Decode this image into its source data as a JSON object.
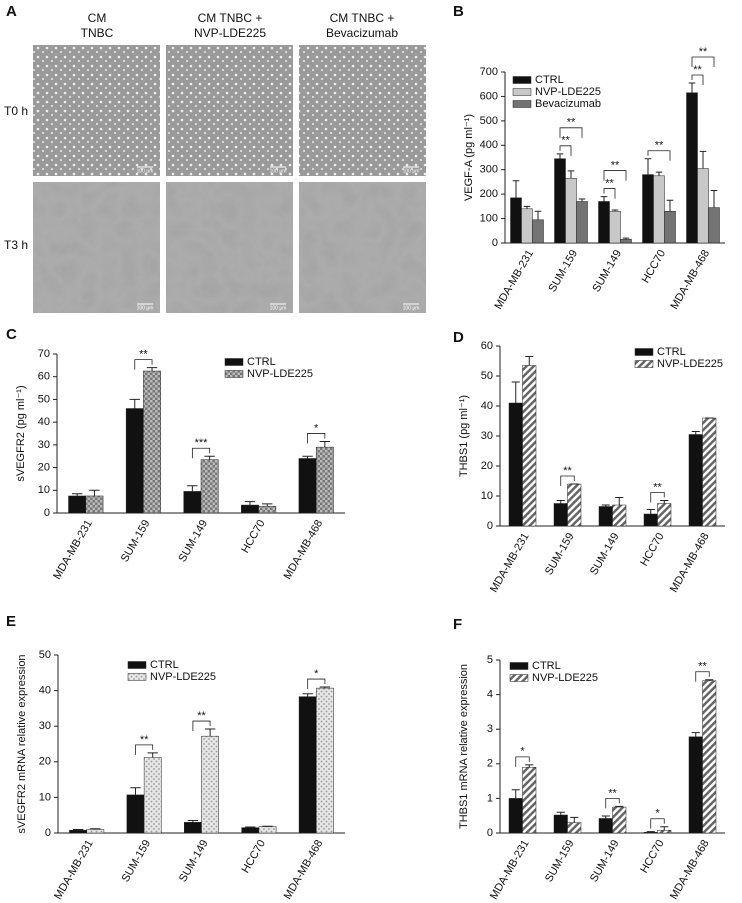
{
  "panel_a": {
    "label": "A",
    "columns": [
      [
        "CM",
        "TNBC"
      ],
      [
        "CM TNBC +",
        "NVP-LDE225"
      ],
      [
        "CM TNBC +",
        "Bevacizumab"
      ]
    ],
    "rows": [
      "T0 h",
      "T3 h"
    ],
    "scale_bar": "100 μm"
  },
  "chart_data": [
    {
      "type": "bar",
      "label": "B",
      "y_label": "VEGF-A (pg ml⁻¹)",
      "legend": "upper left",
      "categories": [
        "MDA-MB-231",
        "SUM-159",
        "SUM-149",
        "HCC70",
        "MDA-MB-468"
      ],
      "series": [
        {
          "name": "CTRL",
          "color": "#111111",
          "values": [
            185,
            345,
            170,
            280,
            615
          ],
          "errors": [
            70,
            20,
            20,
            65,
            40
          ]
        },
        {
          "name": "NVP-LDE225",
          "color": "#c8c8c8",
          "values": [
            140,
            265,
            130,
            275,
            305
          ],
          "errors": [
            10,
            30,
            5,
            15,
            70
          ]
        },
        {
          "name": "Bevacizumab",
          "color": "#737373",
          "values": [
            95,
            170,
            15,
            130,
            145
          ],
          "errors": [
            35,
            10,
            5,
            45,
            70
          ]
        }
      ],
      "ylim": [
        0,
        700
      ],
      "yticks": [
        0,
        100,
        200,
        300,
        400,
        500,
        600,
        700
      ],
      "annotations": [
        {
          "text": "**",
          "category": "SUM-159",
          "series": [
            "CTRL",
            "NVP-LDE225"
          ]
        },
        {
          "text": "**",
          "category": "SUM-159",
          "series": [
            "CTRL",
            "Bevacizumab"
          ]
        },
        {
          "text": "**",
          "category": "SUM-149",
          "series": [
            "CTRL",
            "NVP-LDE225"
          ]
        },
        {
          "text": "**",
          "category": "SUM-149",
          "series": [
            "CTRL",
            "Bevacizumab"
          ]
        },
        {
          "text": "**",
          "category": "HCC70",
          "series": [
            "CTRL",
            "Bevacizumab"
          ]
        },
        {
          "text": "**",
          "category": "MDA-MB-468",
          "series": [
            "CTRL",
            "NVP-LDE225"
          ]
        },
        {
          "text": "**",
          "category": "MDA-MB-468",
          "series": [
            "CTRL",
            "Bevacizumab"
          ]
        }
      ]
    },
    {
      "type": "bar",
      "label": "C",
      "y_label": "sVEGFR2 (pg ml⁻¹)",
      "legend": "upper right",
      "categories": [
        "MDA-MB-231",
        "SUM-159",
        "SUM-149",
        "HCC70",
        "MDA-MB-468"
      ],
      "series": [
        {
          "name": "CTRL",
          "color": "#111111",
          "values": [
            7.5,
            46,
            9.5,
            3.5,
            24
          ],
          "errors": [
            1,
            4,
            2.5,
            1.5,
            1
          ]
        },
        {
          "name": "NVP-LDE225",
          "color": "#777777",
          "pattern": "checker",
          "values": [
            7.5,
            62.5,
            23.5,
            3,
            29
          ],
          "errors": [
            2.5,
            1.5,
            1.5,
            1,
            2.5
          ]
        }
      ],
      "ylim": [
        0,
        70
      ],
      "yticks": [
        0,
        10,
        20,
        30,
        40,
        50,
        60,
        70
      ],
      "annotations": [
        {
          "text": "**",
          "category": "SUM-159"
        },
        {
          "text": "***",
          "category": "SUM-149"
        },
        {
          "text": "*",
          "category": "MDA-MB-468"
        }
      ]
    },
    {
      "type": "bar",
      "label": "D",
      "y_label": "THBS1 (pg ml⁻¹)",
      "legend": "upper right",
      "categories": [
        "MDA-MB-231",
        "SUM-159",
        "SUM-149",
        "HCC70",
        "MDA-MB-468"
      ],
      "series": [
        {
          "name": "CTRL",
          "color": "#111111",
          "values": [
            41,
            7.5,
            6.5,
            4,
            30.5
          ],
          "errors": [
            7,
            1,
            0.5,
            1.5,
            1
          ]
        },
        {
          "name": "NVP-LDE225",
          "color": "#666666",
          "pattern": "hatch",
          "values": [
            53.5,
            14,
            7,
            7.5,
            36
          ],
          "errors": [
            3,
            0,
            2.5,
            1,
            0
          ]
        }
      ],
      "ylim": [
        0,
        60
      ],
      "yticks": [
        0,
        10,
        20,
        30,
        40,
        50,
        60
      ],
      "annotations": [
        {
          "text": "**",
          "category": "SUM-159"
        },
        {
          "text": "**",
          "category": "HCC70"
        }
      ]
    },
    {
      "type": "bar",
      "label": "E",
      "y_label": "sVEGFR2 mRNA relative expression",
      "legend": "upper left",
      "categories": [
        "MDA-MB-231",
        "SUM-159",
        "SUM-149",
        "HCC70",
        "MDA-MB-468"
      ],
      "series": [
        {
          "name": "CTRL",
          "color": "#111111",
          "values": [
            0.8,
            10.7,
            3,
            1.5,
            38.3
          ],
          "errors": [
            0.2,
            2,
            0.5,
            0.2,
            0.8
          ]
        },
        {
          "name": "NVP-LDE225",
          "color": "#999999",
          "pattern": "dots",
          "values": [
            1,
            21.2,
            27.2,
            1.8,
            40.7
          ],
          "errors": [
            0.2,
            1.3,
            2,
            0.1,
            0.3
          ]
        }
      ],
      "ylim": [
        0,
        50
      ],
      "yticks": [
        0,
        10,
        20,
        30,
        40,
        50
      ],
      "annotations": [
        {
          "text": "**",
          "category": "SUM-159"
        },
        {
          "text": "**",
          "category": "SUM-149"
        },
        {
          "text": "*",
          "category": "MDA-MB-468"
        }
      ]
    },
    {
      "type": "bar",
      "label": "F",
      "y_label": "THBS1 mRNA relative expression",
      "legend": "upper left",
      "categories": [
        "MDA-MB-231",
        "SUM-159",
        "SUM-149",
        "HCC70",
        "MDA-MB-468"
      ],
      "series": [
        {
          "name": "CTRL",
          "color": "#111111",
          "values": [
            1,
            0.52,
            0.42,
            0.02,
            2.78
          ],
          "errors": [
            0.25,
            0.08,
            0.07,
            0.02,
            0.12
          ]
        },
        {
          "name": "NVP-LDE225",
          "color": "#666666",
          "pattern": "hatch",
          "values": [
            1.9,
            0.3,
            0.75,
            0.08,
            4.4
          ],
          "errors": [
            0.07,
            0.15,
            0.02,
            0.1,
            0.03
          ]
        }
      ],
      "ylim": [
        0,
        5
      ],
      "yticks": [
        0,
        1,
        2,
        3,
        4,
        5
      ],
      "annotations": [
        {
          "text": "*",
          "category": "MDA-MB-231"
        },
        {
          "text": "**",
          "category": "SUM-149"
        },
        {
          "text": "*",
          "category": "HCC70"
        },
        {
          "text": "**",
          "category": "MDA-MB-468"
        }
      ]
    }
  ]
}
